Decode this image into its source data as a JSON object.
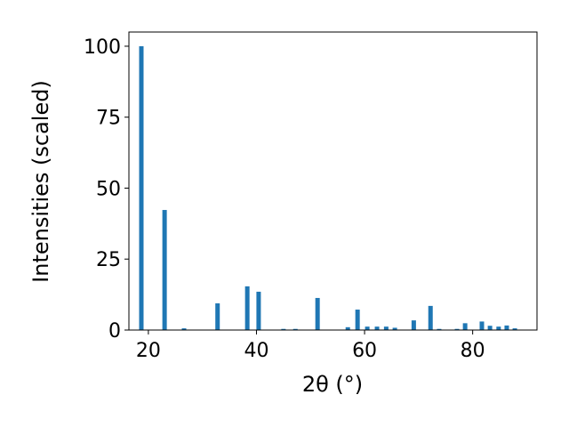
{
  "chart_data": {
    "type": "bar",
    "x_label": "2θ (°)",
    "y_label": "Intensities (scaled)",
    "color": "#1f77b4",
    "x": [
      18.7,
      23.0,
      26.6,
      32.8,
      38.3,
      40.4,
      45.0,
      47.2,
      51.3,
      56.9,
      58.7,
      60.5,
      62.3,
      64.0,
      65.6,
      69.1,
      72.2,
      73.8,
      77.1,
      78.6,
      81.7,
      83.2,
      84.8,
      86.3,
      87.8
    ],
    "values": [
      100,
      42.3,
      0.6,
      9.4,
      15.4,
      13.5,
      0.4,
      0.4,
      11.3,
      1.0,
      7.2,
      1.2,
      1.2,
      1.2,
      0.8,
      3.4,
      8.5,
      0.4,
      0.4,
      2.4,
      3.0,
      1.5,
      1.2,
      1.6,
      0.6
    ],
    "xlim": [
      16.4,
      91.9
    ],
    "ylim": [
      0,
      105
    ],
    "xticks": [
      20,
      40,
      60,
      80
    ],
    "yticks": [
      0,
      25,
      50,
      75,
      100
    ],
    "grid": false
  }
}
